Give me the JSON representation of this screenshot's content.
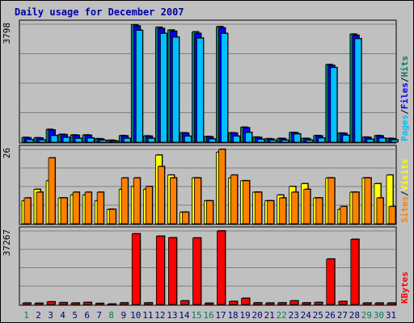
{
  "chart_data": {
    "type": "bar",
    "title": "Daily usage for December 2007",
    "categories": [
      "1",
      "2",
      "3",
      "4",
      "5",
      "6",
      "7",
      "8",
      "9",
      "10",
      "11",
      "12",
      "13",
      "14",
      "15",
      "16",
      "17",
      "18",
      "19",
      "20",
      "21",
      "22",
      "23",
      "24",
      "25",
      "26",
      "27",
      "28",
      "29",
      "30",
      "31"
    ],
    "weekend_days": [
      "1",
      "8",
      "15",
      "16",
      "22",
      "29",
      "30"
    ],
    "colors": {
      "hits": "#00805c",
      "files": "#0000ff",
      "pages": "#00c0ff",
      "visits": "#ffff00",
      "sites": "#ff8000",
      "kbytes": "#ff0000",
      "weekend": "#00805c",
      "weekday": "#000080",
      "panel": "#c0c0c0",
      "title": "#0000a8"
    },
    "panels": [
      {
        "name": "hits-files-pages",
        "peak_label": "3798",
        "ymax": 3798,
        "legend": [
          {
            "key": "pages",
            "label": "Pages"
          },
          {
            "key": "files",
            "label": "Files"
          },
          {
            "key": "hits",
            "label": "Hits"
          }
        ],
        "legend_separator": "/",
        "series": [
          {
            "name": "Hits",
            "color": "#00805c",
            "values": [
              150,
              140,
              410,
              250,
              230,
              230,
              110,
              60,
              210,
              3780,
              200,
              3700,
              3610,
              300,
              3550,
              180,
              3720,
              300,
              480,
              160,
              110,
              120,
              310,
              120,
              210,
              2500,
              290,
              3480,
              160,
              210,
              120
            ]
          },
          {
            "name": "Files",
            "color": "#0000ff",
            "values": [
              140,
              130,
              390,
              240,
              220,
              220,
              100,
              50,
              200,
              3740,
              190,
              3660,
              3570,
              290,
              3500,
              170,
              3680,
              290,
              460,
              150,
              100,
              110,
              300,
              110,
              200,
              2470,
              280,
              3440,
              150,
              200,
              110
            ]
          },
          {
            "name": "Pages",
            "color": "#00c0ff",
            "values": [
              80,
              70,
              210,
              150,
              120,
              130,
              60,
              30,
              120,
              3600,
              120,
              3500,
              3380,
              190,
              3350,
              100,
              3500,
              190,
              310,
              90,
              60,
              60,
              260,
              60,
              130,
              2400,
              220,
              3330,
              90,
              130,
              70
            ]
          }
        ]
      },
      {
        "name": "visits-sites",
        "peak_label": "26",
        "ymax": 26,
        "legend": [
          {
            "key": "sites",
            "label": "Sites"
          },
          {
            "key": "visits",
            "label": "Visits"
          }
        ],
        "legend_separator": "/",
        "series": [
          {
            "name": "Visits",
            "color": "#ffff00",
            "values": [
              8,
              12,
              15,
              9,
              10,
              10,
              8,
              5,
              12,
              13,
              12,
              24,
              17,
              4,
              16,
              8,
              25,
              16,
              15,
              11,
              8,
              10,
              13,
              14,
              9,
              16,
              5,
              11,
              16,
              14,
              17
            ]
          },
          {
            "name": "Sites",
            "color": "#ff8000",
            "values": [
              9,
              11,
              23,
              9,
              11,
              11,
              11,
              5,
              16,
              16,
              13,
              20,
              16,
              4,
              16,
              8,
              26,
              17,
              15,
              11,
              8,
              9,
              11,
              12,
              9,
              16,
              6,
              11,
              16,
              9,
              6
            ]
          }
        ]
      },
      {
        "name": "kbytes",
        "peak_label": "37267",
        "ymax": 37267,
        "legend": [
          {
            "key": "kbytes",
            "label": "KBytes"
          }
        ],
        "legend_separator": "",
        "series": [
          {
            "name": "KBytes",
            "color": "#ff0000",
            "values": [
              700,
              600,
              1300,
              900,
              700,
              1000,
              500,
              200,
              800,
              35800,
              800,
              34600,
              33800,
              1800,
              33700,
              600,
              37267,
              1500,
              3100,
              800,
              700,
              800,
              1800,
              800,
              1000,
              23000,
              1500,
              33000,
              700,
              700,
              700
            ]
          }
        ]
      }
    ]
  }
}
